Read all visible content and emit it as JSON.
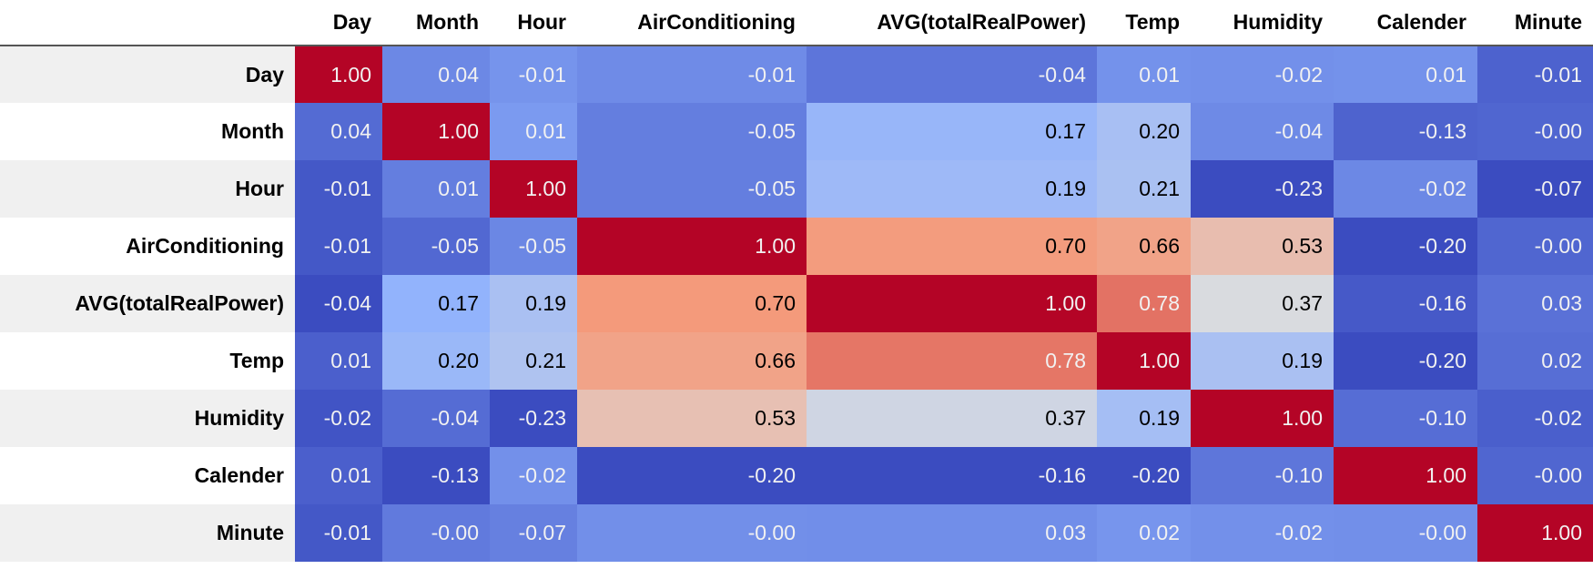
{
  "table": {
    "columns": [
      "Day",
      "Month",
      "Hour",
      "AirConditioning",
      "AVG(totalRealPower)",
      "Temp",
      "Humidity",
      "Calender",
      "Minute"
    ],
    "colormap": "coolwarm",
    "rows": [
      {
        "label": "Day",
        "values": [
          "1.00",
          "0.04",
          "-0.01",
          "-0.01",
          "-0.04",
          "0.01",
          "-0.02",
          "0.01",
          "-0.01"
        ]
      },
      {
        "label": "Month",
        "values": [
          "0.04",
          "1.00",
          "0.01",
          "-0.05",
          "0.17",
          "0.20",
          "-0.04",
          "-0.13",
          "-0.00"
        ]
      },
      {
        "label": "Hour",
        "values": [
          "-0.01",
          "0.01",
          "1.00",
          "-0.05",
          "0.19",
          "0.21",
          "-0.23",
          "-0.02",
          "-0.07"
        ]
      },
      {
        "label": "AirConditioning",
        "values": [
          "-0.01",
          "-0.05",
          "-0.05",
          "1.00",
          "0.70",
          "0.66",
          "0.53",
          "-0.20",
          "-0.00"
        ]
      },
      {
        "label": "AVG(totalRealPower)",
        "values": [
          "-0.04",
          "0.17",
          "0.19",
          "0.70",
          "1.00",
          "0.78",
          "0.37",
          "-0.16",
          "0.03"
        ]
      },
      {
        "label": "Temp",
        "values": [
          "0.01",
          "0.20",
          "0.21",
          "0.66",
          "0.78",
          "1.00",
          "0.19",
          "-0.20",
          "0.02"
        ]
      },
      {
        "label": "Humidity",
        "values": [
          "-0.02",
          "-0.04",
          "-0.23",
          "0.53",
          "0.37",
          "0.19",
          "1.00",
          "-0.10",
          "-0.02"
        ]
      },
      {
        "label": "Calender",
        "values": [
          "0.01",
          "-0.13",
          "-0.02",
          "-0.20",
          "-0.16",
          "-0.20",
          "-0.10",
          "1.00",
          "-0.00"
        ]
      },
      {
        "label": "Minute",
        "values": [
          "-0.01",
          "-0.00",
          "-0.07",
          "-0.00",
          "0.03",
          "0.02",
          "-0.02",
          "-0.00",
          "1.00"
        ]
      }
    ]
  }
}
